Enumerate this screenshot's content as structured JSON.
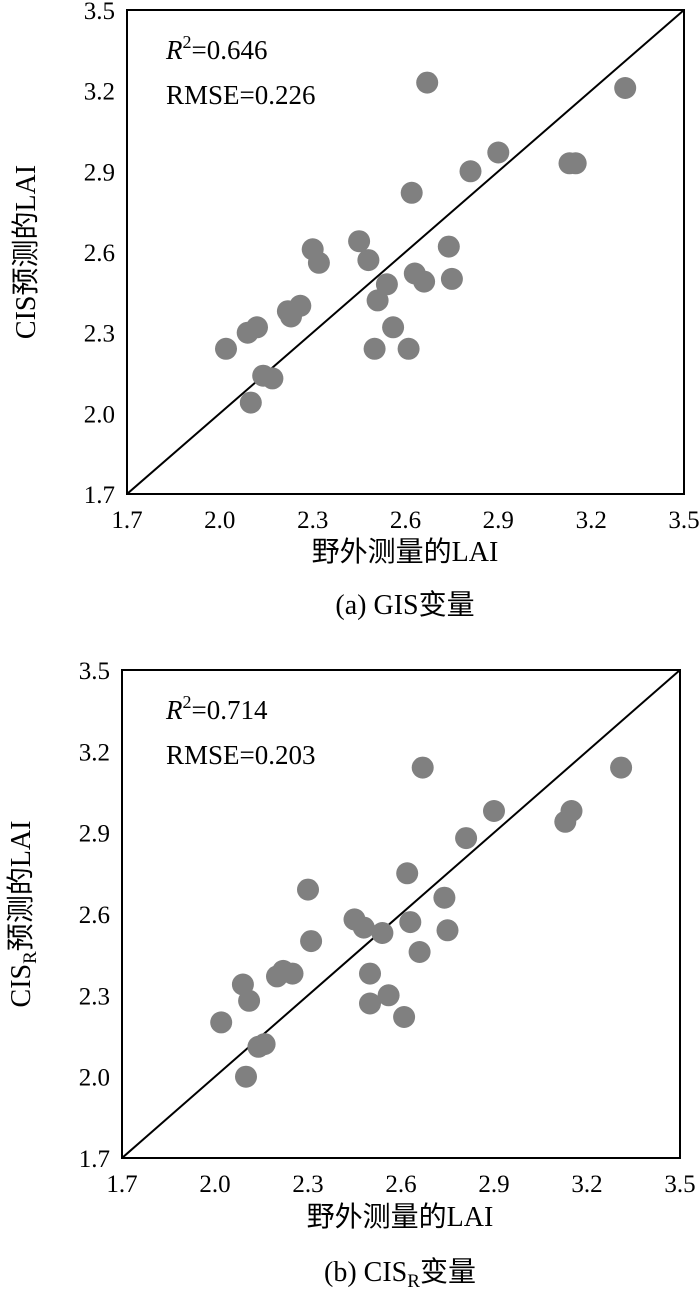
{
  "chart_data": [
    {
      "type": "scatter",
      "panel_caption": "(a) GIS变量",
      "xlabel": "野外测量的LAI",
      "ylabel": "CIS预测的LAI",
      "xlim": [
        1.7,
        3.5
      ],
      "ylim": [
        1.7,
        3.5
      ],
      "xticks": [
        "1.7",
        "2.0",
        "2.3",
        "2.6",
        "2.9",
        "3.2",
        "3.5"
      ],
      "yticks": [
        "1.7",
        "2.0",
        "2.3",
        "2.6",
        "2.9",
        "3.2",
        "3.5"
      ],
      "r2_symbol": "R",
      "r2_sup": "2",
      "r2_value": "=0.646",
      "rmse_text": "RMSE=0.226",
      "reference_line": "1:1",
      "grid": false,
      "points": [
        [
          2.02,
          2.24
        ],
        [
          2.09,
          2.3
        ],
        [
          2.12,
          2.32
        ],
        [
          2.1,
          2.04
        ],
        [
          2.14,
          2.14
        ],
        [
          2.17,
          2.13
        ],
        [
          2.22,
          2.38
        ],
        [
          2.23,
          2.36
        ],
        [
          2.26,
          2.4
        ],
        [
          2.3,
          2.61
        ],
        [
          2.32,
          2.56
        ],
        [
          2.45,
          2.64
        ],
        [
          2.48,
          2.57
        ],
        [
          2.51,
          2.42
        ],
        [
          2.5,
          2.24
        ],
        [
          2.54,
          2.48
        ],
        [
          2.56,
          2.32
        ],
        [
          2.61,
          2.24
        ],
        [
          2.62,
          2.82
        ],
        [
          2.63,
          2.52
        ],
        [
          2.66,
          2.49
        ],
        [
          2.67,
          3.23
        ],
        [
          2.74,
          2.62
        ],
        [
          2.75,
          2.5
        ],
        [
          2.81,
          2.9
        ],
        [
          2.9,
          2.97
        ],
        [
          3.13,
          2.93
        ],
        [
          3.15,
          2.93
        ],
        [
          3.31,
          3.21
        ]
      ]
    },
    {
      "type": "scatter",
      "panel_caption_main": "(b) CIS",
      "panel_caption_sub": "R",
      "panel_caption_tail": "变量",
      "xlabel": "野外测量的LAI",
      "ylabel_main": "CIS",
      "ylabel_sub": "R",
      "ylabel_tail": "预测的LAI",
      "xlim": [
        1.7,
        3.5
      ],
      "ylim": [
        1.7,
        3.5
      ],
      "xticks": [
        "1.7",
        "2.0",
        "2.3",
        "2.6",
        "2.9",
        "3.2",
        "3.5"
      ],
      "yticks": [
        "1.7",
        "2.0",
        "2.3",
        "2.6",
        "2.9",
        "3.2",
        "3.5"
      ],
      "r2_symbol": "R",
      "r2_sup": "2",
      "r2_value": "=0.714",
      "rmse_text": "RMSE=0.203",
      "reference_line": "1:1",
      "grid": false,
      "points": [
        [
          2.02,
          2.2
        ],
        [
          2.09,
          2.34
        ],
        [
          2.1,
          2.0
        ],
        [
          2.11,
          2.28
        ],
        [
          2.14,
          2.11
        ],
        [
          2.16,
          2.12
        ],
        [
          2.2,
          2.37
        ],
        [
          2.22,
          2.39
        ],
        [
          2.25,
          2.38
        ],
        [
          2.3,
          2.69
        ],
        [
          2.31,
          2.5
        ],
        [
          2.45,
          2.58
        ],
        [
          2.48,
          2.55
        ],
        [
          2.5,
          2.38
        ],
        [
          2.5,
          2.27
        ],
        [
          2.54,
          2.53
        ],
        [
          2.56,
          2.3
        ],
        [
          2.61,
          2.22
        ],
        [
          2.62,
          2.75
        ],
        [
          2.63,
          2.57
        ],
        [
          2.66,
          2.46
        ],
        [
          2.67,
          3.14
        ],
        [
          2.74,
          2.66
        ],
        [
          2.75,
          2.54
        ],
        [
          2.81,
          2.88
        ],
        [
          2.9,
          2.98
        ],
        [
          3.13,
          2.94
        ],
        [
          3.15,
          2.98
        ],
        [
          3.31,
          3.14
        ]
      ]
    }
  ]
}
